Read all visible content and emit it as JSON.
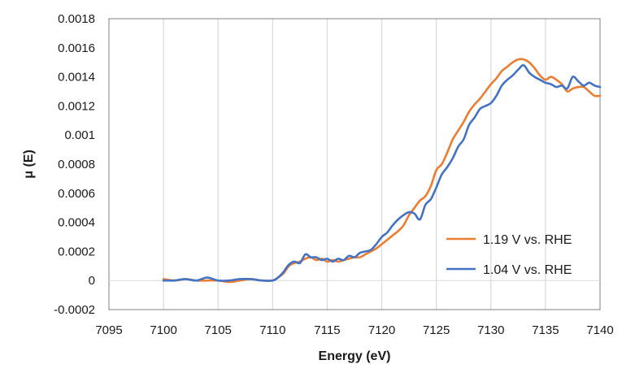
{
  "chart_data": {
    "type": "line",
    "title": "",
    "xlabel": "Energy (eV)",
    "ylabel": "μ (E)",
    "xlim": [
      7095,
      7140
    ],
    "ylim": [
      -0.0002,
      0.0018
    ],
    "x_ticks": [
      7095,
      7100,
      7105,
      7110,
      7115,
      7120,
      7125,
      7130,
      7135,
      7140
    ],
    "x_tick_labels": [
      "7095",
      "7100",
      "7105",
      "7110",
      "7115",
      "7120",
      "7125",
      "7130",
      "7135",
      "7140"
    ],
    "y_ticks": [
      -0.0002,
      0,
      0.0002,
      0.0004,
      0.0006,
      0.0008,
      0.001,
      0.0012,
      0.0014,
      0.0016,
      0.0018
    ],
    "y_tick_labels": [
      "-0.0002",
      "0",
      "0.0002",
      "0.0004",
      "0.0006",
      "0.0008",
      "0.001",
      "0.0012",
      "0.0014",
      "0.0016",
      "0.0018"
    ],
    "grid": "vertical",
    "legend_position": "bottom-right",
    "series": [
      {
        "name": "1.19 V vs. RHE",
        "color": "#ED7D31",
        "x": [
          7100,
          7101,
          7102,
          7103,
          7104,
          7105,
          7106,
          7107,
          7108,
          7109,
          7110,
          7110.5,
          7111,
          7111.5,
          7112,
          7112.5,
          7113,
          7113.5,
          7114,
          7114.5,
          7115,
          7115.5,
          7116,
          7116.5,
          7117,
          7117.5,
          7118,
          7118.5,
          7119,
          7119.5,
          7120,
          7120.5,
          7121,
          7121.5,
          7122,
          7122.5,
          7123,
          7123.5,
          7124,
          7124.5,
          7125,
          7125.5,
          7126,
          7126.5,
          7127,
          7127.5,
          7128,
          7128.5,
          7129,
          7129.5,
          7130,
          7130.5,
          7131,
          7131.5,
          7132,
          7132.5,
          7133,
          7133.5,
          7134,
          7134.5,
          7135,
          7135.5,
          7136,
          7136.5,
          7137,
          7137.5,
          7138,
          7138.5,
          7139,
          7139.5,
          7140
        ],
        "y": [
          1e-05,
          0.0,
          1e-05,
          0.0,
          0.0,
          0.0,
          -1e-05,
          0.0,
          1e-05,
          0.0,
          0.0,
          2e-05,
          5e-05,
          0.0001,
          0.00012,
          0.00013,
          0.00015,
          0.00016,
          0.00014,
          0.00015,
          0.00013,
          0.00014,
          0.00013,
          0.00014,
          0.00015,
          0.00016,
          0.00016,
          0.00018,
          0.0002,
          0.00022,
          0.00025,
          0.00028,
          0.00031,
          0.00034,
          0.00038,
          0.00045,
          0.0005,
          0.00055,
          0.00058,
          0.00065,
          0.00076,
          0.0008,
          0.00088,
          0.00097,
          0.00103,
          0.00109,
          0.00116,
          0.00121,
          0.00125,
          0.0013,
          0.00135,
          0.00139,
          0.00144,
          0.00147,
          0.0015,
          0.00152,
          0.00152,
          0.0015,
          0.00146,
          0.00141,
          0.00138,
          0.0014,
          0.00138,
          0.00135,
          0.0013,
          0.00132,
          0.00133,
          0.00133,
          0.0013,
          0.00127,
          0.00127
        ]
      },
      {
        "name": "1.04 V vs. RHE",
        "color": "#4472C4",
        "x": [
          7100,
          7101,
          7102,
          7103,
          7104,
          7105,
          7106,
          7107,
          7108,
          7109,
          7110,
          7110.5,
          7111,
          7111.5,
          7112,
          7112.5,
          7113,
          7113.5,
          7114,
          7114.5,
          7115,
          7115.5,
          7116,
          7116.5,
          7117,
          7117.5,
          7118,
          7118.5,
          7119,
          7119.5,
          7120,
          7120.5,
          7121,
          7121.5,
          7122,
          7122.5,
          7123,
          7123.5,
          7124,
          7124.5,
          7125,
          7125.5,
          7126,
          7126.5,
          7127,
          7127.5,
          7128,
          7128.5,
          7129,
          7129.5,
          7130,
          7130.5,
          7131,
          7131.5,
          7132,
          7132.5,
          7133,
          7133.5,
          7134,
          7134.5,
          7135,
          7135.5,
          7136,
          7136.5,
          7137,
          7137.5,
          7138,
          7138.5,
          7139,
          7139.5,
          7140
        ],
        "y": [
          0.0,
          0.0,
          1e-05,
          0.0,
          2e-05,
          0.0,
          0.0,
          1e-05,
          1e-05,
          0.0,
          0.0,
          2e-05,
          6e-05,
          0.00011,
          0.00013,
          0.00012,
          0.00018,
          0.00016,
          0.00016,
          0.00014,
          0.00015,
          0.00013,
          0.00015,
          0.00014,
          0.00017,
          0.00016,
          0.00019,
          0.0002,
          0.00021,
          0.00025,
          0.0003,
          0.00033,
          0.00038,
          0.00042,
          0.00045,
          0.00047,
          0.00046,
          0.00042,
          0.00052,
          0.00056,
          0.00064,
          0.00073,
          0.00078,
          0.00084,
          0.00092,
          0.00097,
          0.00107,
          0.00112,
          0.00118,
          0.0012,
          0.00122,
          0.00127,
          0.00134,
          0.00138,
          0.00141,
          0.00145,
          0.00148,
          0.00143,
          0.0014,
          0.00138,
          0.00136,
          0.00135,
          0.00133,
          0.00134,
          0.00132,
          0.0014,
          0.00137,
          0.00134,
          0.00136,
          0.00134,
          0.00133
        ]
      }
    ]
  }
}
